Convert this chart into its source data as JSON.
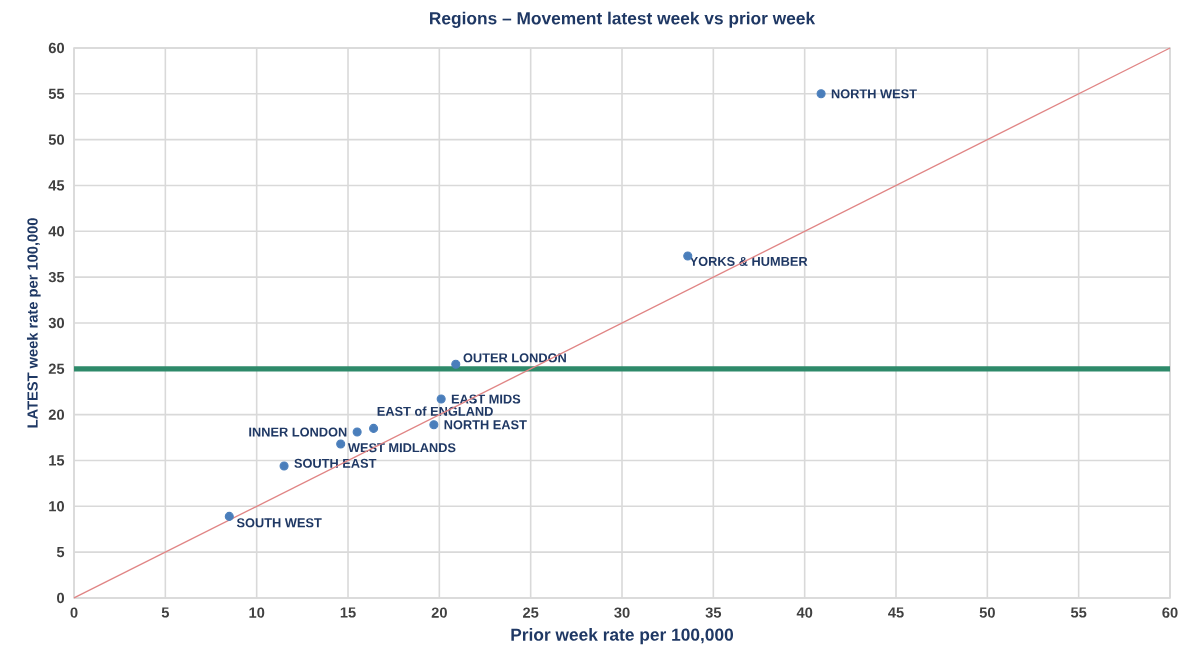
{
  "chart_data": {
    "type": "scatter",
    "title": "Regions – Movement latest week vs prior week",
    "xlabel": "Prior week rate per 100,000",
    "ylabel": "LATEST  week rate per 100,000",
    "xlim": [
      0,
      60
    ],
    "ylim": [
      0,
      60
    ],
    "xticks": [
      0,
      5,
      10,
      15,
      20,
      25,
      30,
      35,
      40,
      45,
      50,
      55,
      60
    ],
    "yticks": [
      0,
      5,
      10,
      15,
      20,
      25,
      30,
      35,
      40,
      45,
      50,
      55,
      60
    ],
    "grid": true,
    "legend": false,
    "series": [
      {
        "name": "NORTH WEST",
        "color": "#4a7ebb",
        "x": [
          40.9
        ],
        "values": [
          55.0
        ]
      },
      {
        "name": "YORKS & HUMBER",
        "color": "#4a7ebb",
        "x": [
          33.6
        ],
        "values": [
          37.3
        ]
      },
      {
        "name": "OUTER LONDON",
        "color": "#4a7ebb",
        "x": [
          20.9
        ],
        "values": [
          25.5
        ]
      },
      {
        "name": "EAST MIDS",
        "color": "#4a7ebb",
        "x": [
          20.1
        ],
        "values": [
          21.7
        ]
      },
      {
        "name": "NORTH EAST",
        "color": "#4a7ebb",
        "x": [
          19.7
        ],
        "values": [
          18.9
        ]
      },
      {
        "name": "EAST of ENGLAND",
        "color": "#4a7ebb",
        "x": [
          16.4
        ],
        "values": [
          18.5
        ]
      },
      {
        "name": "INNER LONDON",
        "color": "#4a7ebb",
        "x": [
          15.5
        ],
        "values": [
          18.1
        ]
      },
      {
        "name": "WEST MIDLANDS",
        "color": "#4a7ebb",
        "x": [
          14.6
        ],
        "values": [
          16.8
        ]
      },
      {
        "name": "SOUTH EAST",
        "color": "#4a7ebb",
        "x": [
          11.5
        ],
        "values": [
          14.4
        ]
      },
      {
        "name": "SOUTH WEST",
        "color": "#4a7ebb",
        "x": [
          8.5
        ],
        "values": [
          8.9
        ]
      },
      {
        "type": "line",
        "color": "#e08585",
        "x": [
          0,
          60
        ],
        "values": [
          0,
          60
        ]
      }
    ],
    "ref_lines": [
      {
        "axis": "y",
        "value": 25,
        "color": "#2e8a6a"
      }
    ]
  }
}
